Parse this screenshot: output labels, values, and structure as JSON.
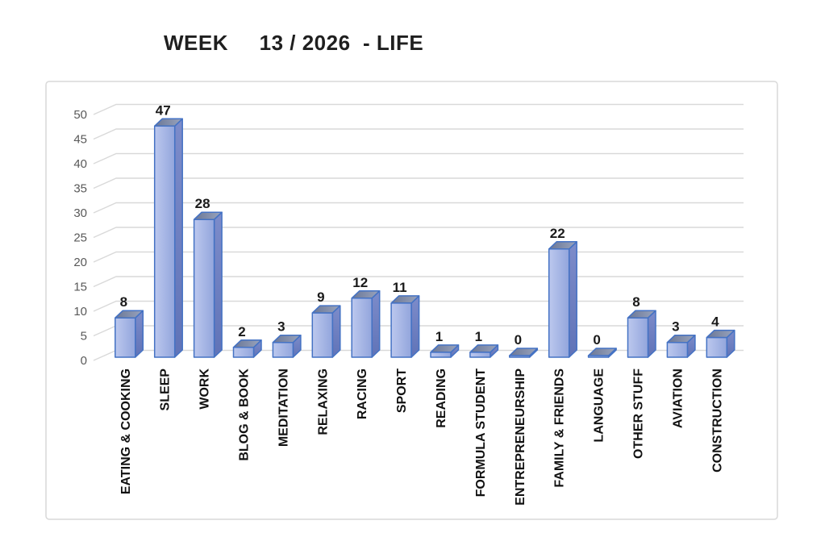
{
  "title": "WEEK     13 / 2026  - LIFE",
  "chart_data": {
    "type": "bar",
    "style": "3d-cuboid-excel",
    "title": "WEEK 13 / 2026 - LIFE",
    "categories": [
      "EATING & COOKING",
      "SLEEP",
      "WORK",
      "BLOG & BOOK",
      "MEDITATION",
      "RELAXING",
      "RACING",
      "SPORT",
      "READING",
      "FORMULA STUDENT",
      "ENTREPRENEURSHIP",
      "FAMILY & FRIENDS",
      "LANGUAGE",
      "OTHER STUFF",
      "AVIATION",
      "CONSTRUCTION"
    ],
    "values": [
      8,
      47,
      28,
      2,
      3,
      9,
      12,
      11,
      1,
      1,
      0,
      22,
      0,
      8,
      3,
      4
    ],
    "xlabel": "",
    "ylabel": "",
    "ylim": [
      0,
      50
    ],
    "ytick_step": 5,
    "yticks": [
      0,
      5,
      10,
      15,
      20,
      25,
      30,
      35,
      40,
      45,
      50
    ],
    "grid": true,
    "legend": false,
    "value_labels": true
  },
  "colors": {
    "bar_outline": "#4472c4",
    "bar_front_light": "#bcc8ee",
    "bar_front_dark": "#92a5dc",
    "bar_side_light": "#7d8cca",
    "bar_side_dark": "#6073b7",
    "bar_top_dark": "#6a7796",
    "bar_top_light": "#9aa4bd",
    "gridline": "#d9d9d9",
    "plot_border": "#d9d9d9",
    "ytick_text": "#595959",
    "value_text": "#1a1a1a",
    "category_text": "#111111",
    "title_text": "#1f1f1f",
    "background": "#ffffff"
  }
}
